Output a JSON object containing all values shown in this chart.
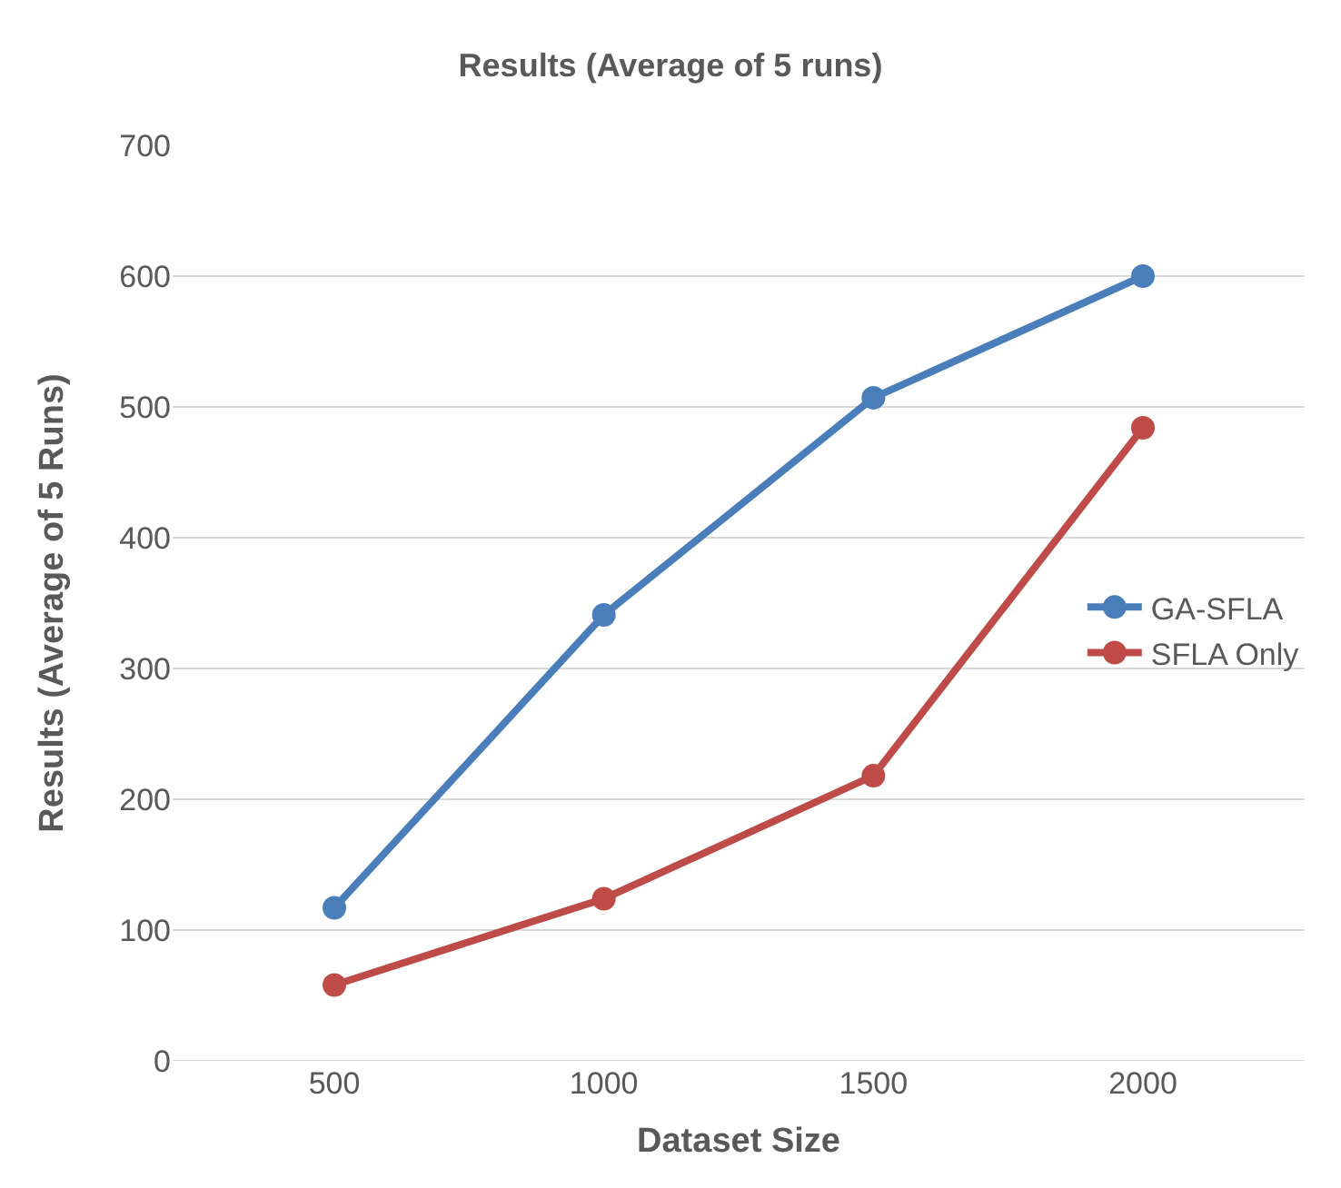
{
  "chart_data": {
    "type": "line",
    "title": "Results (Average of 5 runs)",
    "xlabel": "Dataset Size",
    "ylabel": "Results (Average of 5 Runs)",
    "categories": [
      "500",
      "1000",
      "1500",
      "2000"
    ],
    "series": [
      {
        "name": "GA-SFLA",
        "color": "#4a7ebb",
        "values": [
          117,
          341,
          507,
          600
        ]
      },
      {
        "name": "SFLA Only",
        "color": "#be4b48",
        "values": [
          58,
          124,
          218,
          484
        ]
      }
    ],
    "ylim": [
      0,
      700
    ],
    "yticks": [
      0,
      100,
      200,
      300,
      400,
      500,
      600,
      700
    ],
    "grid": "y",
    "legend": "right",
    "marker": "circle",
    "line_style": "solid"
  }
}
